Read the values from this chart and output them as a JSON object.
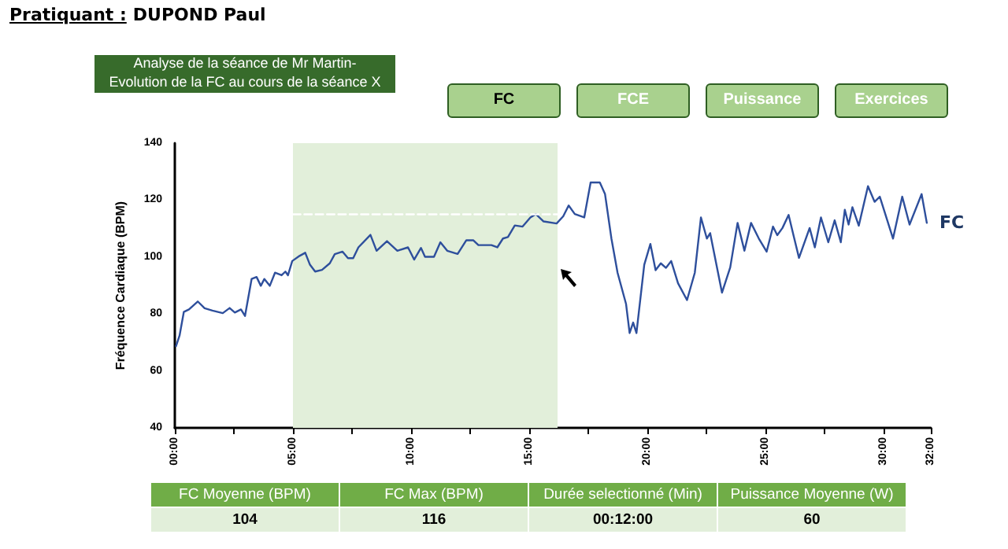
{
  "chart_data": {
    "type": "line",
    "title": "Analyse de la séance de Mr Martin-\nEvolution de la FC au cours de la séance X",
    "ylabel": "Fréquence Cardiaque (BPM)",
    "annotations": [
      "Pratiquant :",
      "DUPOND Paul",
      "FC",
      "FCE",
      "Puissance",
      "Exercices",
      "FC Moyenne (BPM)",
      "FC Max (BPM)",
      "Durée selectionné (Min)",
      "Puissance Moyenne (W)",
      "104",
      "116",
      "00:12:00",
      "60"
    ],
    "series": [
      {
        "name": "FC",
        "color": "#2e4f9c",
        "x": [
          0.05,
          0.2,
          0.38,
          0.6,
          0.97,
          1.26,
          1.59,
          2.03,
          2.32,
          2.54,
          2.8,
          2.97,
          3.25,
          3.46,
          3.64,
          3.79,
          4.02,
          4.24,
          4.52,
          4.68,
          4.79,
          4.97,
          5.28,
          5.52,
          5.72,
          5.94,
          6.23,
          6.56,
          6.77,
          7.1,
          7.33,
          7.55,
          7.77,
          8.28,
          8.54,
          8.98,
          9.42,
          9.87,
          10.13,
          10.42,
          10.59,
          10.97,
          11.24,
          11.53,
          11.97,
          12.34,
          12.63,
          12.85,
          13.4,
          13.65,
          13.89,
          14.1,
          14.39,
          14.72,
          15.05,
          15.28,
          15.61,
          16.16,
          16.44,
          16.67,
          16.93,
          17.33,
          17.6,
          17.99,
          18.21,
          18.48,
          18.74,
          19.1,
          19.25,
          19.4,
          19.54,
          19.87,
          20.13,
          20.35,
          20.57,
          20.79,
          21.01,
          21.3,
          21.68,
          22.01,
          22.27,
          22.52,
          22.66,
          23.16,
          23.51,
          23.82,
          24.11,
          24.39,
          24.72,
          25.05,
          25.32,
          25.5,
          25.72,
          25.98,
          26.2,
          26.42,
          26.87,
          27.09,
          27.35,
          27.66,
          27.93,
          28.19,
          28.36,
          28.52,
          28.68,
          28.95,
          29.34,
          29.62,
          29.84,
          30.4,
          30.79,
          31.1,
          31.61,
          31.83
        ],
        "values": [
          68.7,
          72.4,
          80.7,
          81.6,
          84.4,
          82,
          81.2,
          80.3,
          82.1,
          80.5,
          81.6,
          79.3,
          92.3,
          93,
          89.9,
          92.3,
          89.9,
          94.5,
          93.6,
          94.9,
          93.6,
          98.6,
          100.4,
          101.5,
          97.3,
          94.9,
          95.5,
          97.8,
          101,
          101.9,
          99.6,
          99.6,
          103.4,
          107.8,
          102.2,
          105.6,
          102.2,
          103.4,
          99.1,
          103.2,
          100.1,
          100.1,
          105.2,
          102.2,
          101.1,
          105.9,
          105.9,
          104.2,
          104.2,
          103.4,
          106.5,
          107,
          111.1,
          110.7,
          113.9,
          115.1,
          112.5,
          111.8,
          114.3,
          118.1,
          115.1,
          113.9,
          126.2,
          126.2,
          122.1,
          106.5,
          94.5,
          83.5,
          73.3,
          77,
          73.3,
          97.3,
          104.6,
          95.4,
          97.8,
          96.2,
          98.6,
          90.8,
          84.9,
          94.5,
          113.9,
          106.5,
          108.4,
          87.5,
          96.4,
          112,
          102.2,
          112,
          106.5,
          101.9,
          110.7,
          107.7,
          110.2,
          114.8,
          107.2,
          99.7,
          110.2,
          103.4,
          113.9,
          105.2,
          112.9,
          105.2,
          116.6,
          111.4,
          117.5,
          111,
          124.9,
          119.4,
          121.2,
          106.5,
          121.2,
          111.4,
          122.1,
          112
        ]
      },
      {
        "color": "#ffffff",
        "line_style": "dashed",
        "x": [
          5,
          16.2
        ],
        "values": [
          115,
          115
        ]
      }
    ],
    "bands": [
      {
        "axis": "x",
        "from": 5,
        "to": 16.2,
        "color": "#e2efda"
      }
    ],
    "xlim": [
      0,
      32
    ],
    "xticks": [
      {
        "value": 0,
        "label": "00:00"
      },
      {
        "value": 2.5,
        "label": null
      },
      {
        "value": 5,
        "label": "05:00"
      },
      {
        "value": 7.5,
        "label": null
      },
      {
        "value": 10,
        "label": "10:00"
      },
      {
        "value": 12.5,
        "label": null
      },
      {
        "value": 15,
        "label": "15:00"
      },
      {
        "value": 17.5,
        "label": null
      },
      {
        "value": 20,
        "label": "20:00"
      },
      {
        "value": 22.5,
        "label": null
      },
      {
        "value": 25,
        "label": "25:00"
      },
      {
        "value": 27.5,
        "label": null
      },
      {
        "value": 30,
        "label": "30:00"
      },
      {
        "value": 32,
        "label": "32:00"
      }
    ],
    "ylim": [
      40,
      140
    ],
    "yticks": [
      40,
      60,
      80,
      100,
      120,
      140
    ],
    "grid": false,
    "marker": "none",
    "line_style": "solid"
  }
}
